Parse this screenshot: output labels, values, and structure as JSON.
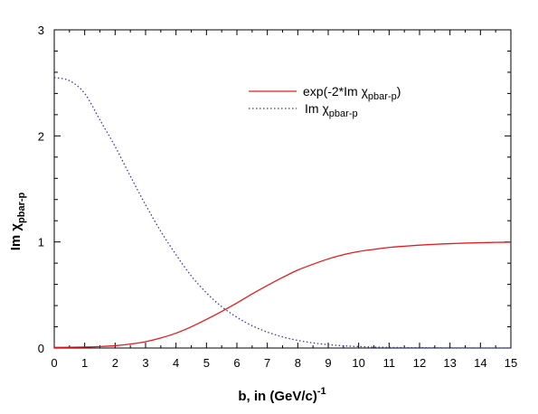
{
  "chart_data": {
    "type": "line",
    "xlabel_main": "b, in (GeV/c)",
    "xlabel_sup": "-1",
    "ylabel_main": "Im χ",
    "ylabel_sub": "pbar-p",
    "xlim": [
      0,
      15
    ],
    "ylim": [
      0,
      3
    ],
    "x_ticks": [
      0,
      1,
      2,
      3,
      4,
      5,
      6,
      7,
      8,
      9,
      10,
      11,
      12,
      13,
      14,
      15
    ],
    "x_tick_labels": [
      "0",
      "1",
      "2",
      "3",
      "4",
      "5",
      "6",
      "7",
      "8",
      "9",
      "10",
      "11",
      "12",
      "13",
      "14",
      "15"
    ],
    "y_ticks": [
      0,
      1,
      2,
      3
    ],
    "y_tick_labels": [
      "0",
      "1",
      "2",
      "3"
    ],
    "grid": false,
    "legend_position": "top-right",
    "series": [
      {
        "legend_main": "exp(-2*Im χ",
        "legend_sub": "pbar-p",
        "legend_tail": ")",
        "color": "#e41a1c",
        "style": "solid",
        "x": [
          0,
          0.5,
          1,
          1.5,
          2,
          2.5,
          3,
          3.5,
          4,
          4.5,
          5,
          5.5,
          6,
          6.5,
          7,
          7.5,
          8,
          8.5,
          9,
          9.5,
          10,
          10.5,
          11,
          11.5,
          12,
          12.5,
          13,
          13.5,
          14,
          14.5,
          15
        ],
        "y": [
          0.006,
          0.007,
          0.009,
          0.014,
          0.022,
          0.037,
          0.06,
          0.095,
          0.14,
          0.2,
          0.27,
          0.345,
          0.425,
          0.51,
          0.59,
          0.665,
          0.735,
          0.79,
          0.84,
          0.88,
          0.91,
          0.93,
          0.948,
          0.96,
          0.97,
          0.978,
          0.984,
          0.989,
          0.993,
          0.996,
          0.998
        ]
      },
      {
        "legend_main": "Im χ",
        "legend_sub": "pbar-p",
        "legend_tail": "",
        "color": "#3333cc",
        "style": "dotted",
        "x": [
          0,
          0.5,
          1,
          1.5,
          2,
          2.5,
          3,
          3.5,
          4,
          4.5,
          5,
          5.5,
          6,
          6.5,
          7,
          7.5,
          8,
          8.5,
          9,
          9.5,
          10,
          10.5,
          11,
          11.5,
          12,
          12.5,
          13,
          13.5,
          14,
          14.5,
          15
        ],
        "y": [
          2.55,
          2.52,
          2.4,
          2.15,
          1.9,
          1.62,
          1.35,
          1.1,
          0.88,
          0.68,
          0.52,
          0.39,
          0.29,
          0.21,
          0.15,
          0.105,
          0.072,
          0.048,
          0.032,
          0.021,
          0.014,
          0.009,
          0.006,
          0.004,
          0.003,
          0.002,
          0.001,
          0.001,
          0.0,
          0.0,
          0.0
        ]
      }
    ]
  }
}
